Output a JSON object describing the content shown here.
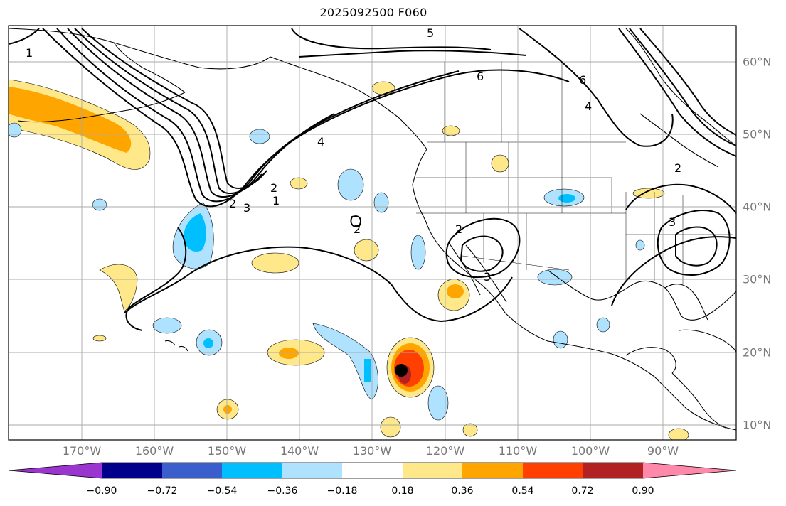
{
  "title": "2025092500 F060",
  "longitude_labels": [
    "170°W",
    "160°W",
    "150°W",
    "140°W",
    "130°W",
    "120°W",
    "110°W",
    "100°W",
    "90°W"
  ],
  "latitude_labels": [
    "60°N",
    "50°N",
    "40°N",
    "30°N",
    "20°N",
    "10°N"
  ],
  "colorbar": {
    "tick_labels": [
      "−0.90",
      "−0.72",
      "−0.54",
      "−0.36",
      "−0.18",
      "0.18",
      "0.36",
      "0.54",
      "0.72",
      "0.90"
    ],
    "colors": [
      "#9a35d0",
      "#00008b",
      "#3a5fcd",
      "#00bfff",
      "#aee2ff",
      "#ffffff",
      "#ffe88a",
      "#ffa500",
      "#ff4000",
      "#b22222",
      "#ff89aa"
    ]
  },
  "contour_labels": [
    "1",
    "5",
    "6",
    "6",
    "4",
    "4",
    "3",
    "2",
    "1",
    "2",
    "2",
    "2",
    "3",
    "3",
    "2"
  ],
  "storm_marker": "storm-center",
  "map_style": {
    "contour_color": "#000000",
    "grid_color": "#aaaaaa",
    "coastline_color": "#000000"
  }
}
